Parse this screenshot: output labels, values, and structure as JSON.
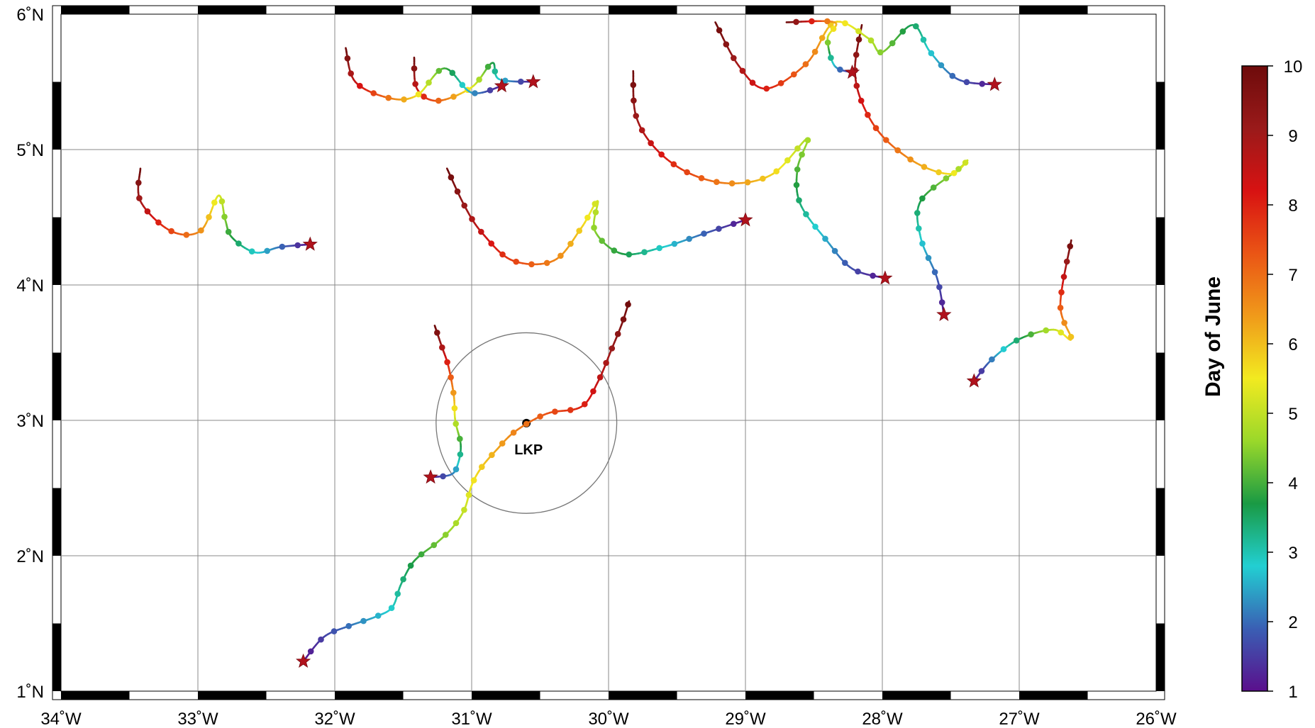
{
  "map": {
    "lon_range": [
      -34,
      -26
    ],
    "lat_range": [
      1,
      6
    ],
    "x_tick_labels": [
      "34˚W",
      "33˚W",
      "32˚W",
      "31˚W",
      "30˚W",
      "29˚W",
      "28˚W",
      "27˚W",
      "26˚W"
    ],
    "y_tick_labels": [
      "1˚N",
      "2˚N",
      "3˚N",
      "4˚N",
      "5˚N",
      "6˚N"
    ],
    "grid": true,
    "frame": "alternating black and white border"
  },
  "lkp": {
    "label": "LKP",
    "lon": -30.6,
    "lat": 2.98,
    "circle_radius_deg": 0.66
  },
  "colorbar": {
    "label": "Day of June",
    "min": 1,
    "max": 10,
    "tick_labels": [
      "1",
      "2",
      "3",
      "4",
      "5",
      "6",
      "7",
      "8",
      "9",
      "10"
    ],
    "colors": [
      "#5a0f8c",
      "#3a5fb4",
      "#22cfd2",
      "#1a9a44",
      "#9ad82a",
      "#f2ea20",
      "#f09a1a",
      "#ea5515",
      "#d81212",
      "#9a1a1a",
      "#6e0b0b"
    ]
  },
  "chart_data": {
    "type": "scatter",
    "title": "",
    "xlabel": "",
    "ylabel": "",
    "xlim": [
      -34,
      -26
    ],
    "ylim": [
      1,
      6
    ],
    "color_variable": "Day of June",
    "star_marks_start": true,
    "trajectories": [
      {
        "points": [
          [
            -32.23,
            1.22
          ],
          [
            -32.08,
            1.4
          ],
          [
            -31.9,
            1.48
          ],
          [
            -31.7,
            1.55
          ],
          [
            -31.58,
            1.62
          ],
          [
            -31.52,
            1.78
          ],
          [
            -31.45,
            1.92
          ],
          [
            -31.38,
            2.0
          ],
          [
            -31.25,
            2.1
          ],
          [
            -31.13,
            2.22
          ],
          [
            -31.05,
            2.35
          ],
          [
            -31.0,
            2.52
          ],
          [
            -30.93,
            2.65
          ],
          [
            -30.82,
            2.78
          ],
          [
            -30.68,
            2.92
          ],
          [
            -30.45,
            3.05
          ],
          [
            -30.2,
            3.1
          ],
          [
            -30.08,
            3.28
          ],
          [
            -29.98,
            3.52
          ],
          [
            -29.9,
            3.72
          ],
          [
            -29.85,
            3.88
          ]
        ]
      },
      {
        "points": [
          [
            -31.3,
            2.58
          ],
          [
            -31.15,
            2.6
          ],
          [
            -31.1,
            2.68
          ],
          [
            -31.08,
            2.82
          ],
          [
            -31.12,
            3.0
          ],
          [
            -31.13,
            3.18
          ],
          [
            -31.17,
            3.4
          ],
          [
            -31.22,
            3.55
          ],
          [
            -31.27,
            3.7
          ]
        ]
      },
      {
        "points": [
          [
            -32.18,
            4.3
          ],
          [
            -32.4,
            4.28
          ],
          [
            -32.58,
            4.24
          ],
          [
            -32.75,
            4.35
          ],
          [
            -32.8,
            4.48
          ],
          [
            -32.85,
            4.66
          ],
          [
            -32.98,
            4.4
          ],
          [
            -33.2,
            4.4
          ],
          [
            -33.42,
            4.62
          ],
          [
            -33.42,
            4.86
          ]
        ]
      },
      {
        "points": [
          [
            -29.0,
            4.48
          ],
          [
            -29.3,
            4.38
          ],
          [
            -29.6,
            4.28
          ],
          [
            -29.9,
            4.23
          ],
          [
            -30.1,
            4.4
          ],
          [
            -30.08,
            4.62
          ],
          [
            -30.2,
            4.42
          ],
          [
            -30.4,
            4.18
          ],
          [
            -30.7,
            4.18
          ],
          [
            -30.92,
            4.38
          ],
          [
            -31.05,
            4.58
          ],
          [
            -31.18,
            4.86
          ]
        ]
      },
      {
        "points": [
          [
            -27.98,
            4.05
          ],
          [
            -28.22,
            4.12
          ],
          [
            -28.4,
            4.32
          ],
          [
            -28.6,
            4.6
          ],
          [
            -28.62,
            4.86
          ],
          [
            -28.55,
            5.08
          ],
          [
            -28.8,
            4.82
          ],
          [
            -29.1,
            4.75
          ],
          [
            -29.4,
            4.82
          ],
          [
            -29.65,
            5.0
          ],
          [
            -29.8,
            5.25
          ],
          [
            -29.82,
            5.58
          ]
        ]
      },
      {
        "points": [
          [
            -27.55,
            3.78
          ],
          [
            -27.6,
            4.05
          ],
          [
            -27.72,
            4.35
          ],
          [
            -27.72,
            4.62
          ],
          [
            -27.45,
            4.85
          ],
          [
            -27.38,
            4.92
          ],
          [
            -27.5,
            4.82
          ],
          [
            -27.75,
            4.9
          ],
          [
            -28.0,
            5.1
          ],
          [
            -28.15,
            5.35
          ],
          [
            -28.2,
            5.6
          ],
          [
            -28.15,
            5.92
          ]
        ]
      },
      {
        "points": [
          [
            -27.18,
            5.48
          ],
          [
            -27.45,
            5.52
          ],
          [
            -27.65,
            5.72
          ],
          [
            -27.78,
            5.92
          ],
          [
            -28.0,
            5.72
          ],
          [
            -28.1,
            5.82
          ],
          [
            -28.35,
            5.94
          ],
          [
            -28.55,
            5.64
          ],
          [
            -28.85,
            5.45
          ],
          [
            -29.05,
            5.62
          ],
          [
            -29.22,
            5.94
          ]
        ]
      },
      {
        "points": [
          [
            -28.22,
            5.57
          ],
          [
            -28.35,
            5.62
          ],
          [
            -28.4,
            5.82
          ],
          [
            -28.35,
            5.94
          ],
          [
            -28.7,
            5.94
          ]
        ]
      },
      {
        "points": [
          [
            -30.55,
            5.5
          ],
          [
            -30.8,
            5.52
          ],
          [
            -30.85,
            5.64
          ],
          [
            -31.0,
            5.46
          ],
          [
            -31.25,
            5.36
          ],
          [
            -31.4,
            5.45
          ],
          [
            -31.42,
            5.68
          ]
        ]
      },
      {
        "points": [
          [
            -30.78,
            5.47
          ],
          [
            -31.0,
            5.42
          ],
          [
            -31.2,
            5.6
          ],
          [
            -31.4,
            5.4
          ],
          [
            -31.6,
            5.38
          ],
          [
            -31.85,
            5.5
          ],
          [
            -31.92,
            5.75
          ]
        ]
      },
      {
        "points": [
          [
            -27.33,
            3.29
          ],
          [
            -27.2,
            3.45
          ],
          [
            -27.0,
            3.6
          ],
          [
            -26.75,
            3.67
          ],
          [
            -26.62,
            3.6
          ],
          [
            -26.7,
            3.85
          ],
          [
            -26.62,
            4.33
          ]
        ]
      }
    ]
  }
}
